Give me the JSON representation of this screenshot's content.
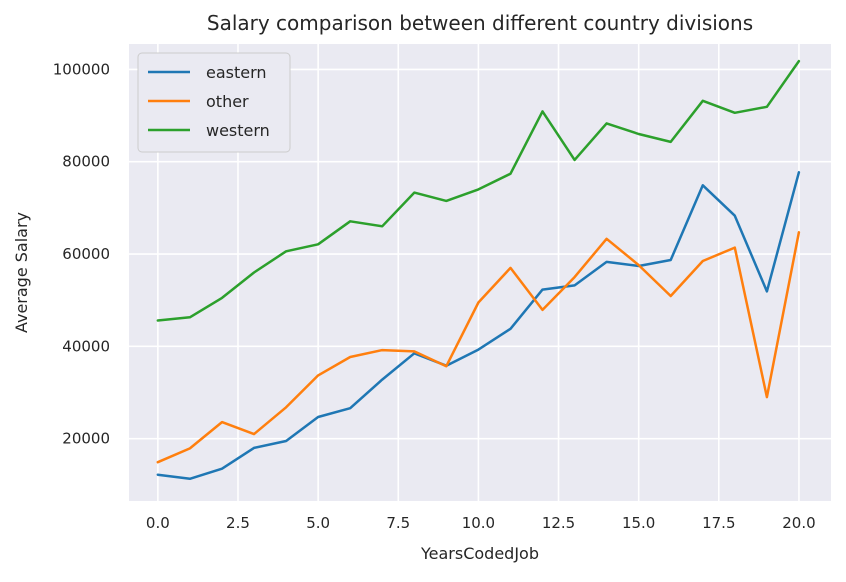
{
  "chart_data": {
    "type": "line",
    "title": "Salary comparison between different country divisions",
    "xlabel": "YearsCodedJob",
    "ylabel": "Average Salary",
    "xlim": [
      -0.9,
      21.0
    ],
    "ylim": [
      6500,
      105500
    ],
    "x_ticks": [
      0.0,
      2.5,
      5.0,
      7.5,
      10.0,
      12.5,
      15.0,
      17.5,
      20.0
    ],
    "x_tick_labels": [
      "0.0",
      "2.5",
      "5.0",
      "7.5",
      "10.0",
      "12.5",
      "15.0",
      "17.5",
      "20.0"
    ],
    "y_ticks": [
      20000,
      40000,
      60000,
      80000,
      100000
    ],
    "y_tick_labels": [
      "20000",
      "40000",
      "60000",
      "80000",
      "100000"
    ],
    "grid": true,
    "background": "#eaeaf2",
    "legend_position": "top-left",
    "x": [
      0,
      1,
      2,
      3,
      4,
      5,
      6,
      7,
      8,
      9,
      10,
      11,
      12,
      13,
      14,
      15,
      16,
      17,
      18,
      19,
      20
    ],
    "series": [
      {
        "name": "eastern",
        "color": "#1f77b4",
        "values": [
          12200,
          11300,
          13500,
          18000,
          19500,
          24700,
          26600,
          32800,
          38500,
          35800,
          39300,
          43800,
          52300,
          53200,
          58300,
          57400,
          58700,
          74900,
          68300,
          51900,
          77700
        ]
      },
      {
        "name": "other",
        "color": "#ff7f0e",
        "values": [
          14900,
          17900,
          23600,
          21000,
          26800,
          33700,
          37700,
          39200,
          38900,
          35700,
          49500,
          57000,
          47900,
          55000,
          63300,
          57600,
          50900,
          58500,
          61400,
          29000,
          64700
        ]
      },
      {
        "name": "western",
        "color": "#2ca02c",
        "values": [
          45600,
          46300,
          50500,
          56000,
          60600,
          62100,
          67100,
          66000,
          73300,
          71500,
          74000,
          77400,
          90900,
          80400,
          88300,
          86000,
          84300,
          93200,
          90600,
          91900,
          101800
        ]
      }
    ]
  }
}
